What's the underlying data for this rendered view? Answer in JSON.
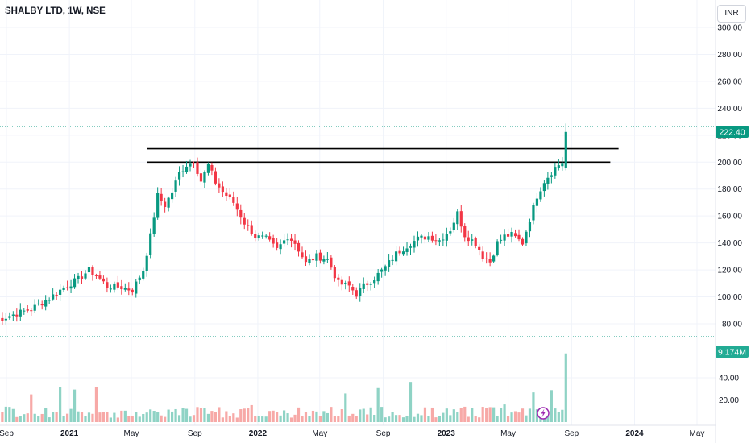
{
  "header": {
    "title": "SHALBY LTD, 1W, NSE",
    "currency": "INR"
  },
  "price_tag": "222.40",
  "volume_tag": "9.174M",
  "chart_data": {
    "type": "candlestick",
    "y_ticks": [
      "300.00",
      "280.00",
      "260.00",
      "240.00",
      "220.00",
      "200.00",
      "180.00",
      "160.00",
      "140.00",
      "120.00",
      "100.00",
      "80.00"
    ],
    "y_tick_values": [
      300,
      280,
      260,
      240,
      220,
      200,
      180,
      160,
      140,
      120,
      100,
      80
    ],
    "volume_ticks": [
      "40.00",
      "20.00"
    ],
    "volume_tick_values": [
      40,
      20
    ],
    "x_ticks": [
      "Sep",
      "2021",
      "May",
      "Sep",
      "2022",
      "May",
      "Sep",
      "2023",
      "May",
      "Sep",
      "2024",
      "May"
    ],
    "x_tick_dates": [
      "2020-09-01",
      "2021-01-01",
      "2021-05-01",
      "2021-09-01",
      "2022-01-01",
      "2022-05-01",
      "2022-09-01",
      "2023-01-01",
      "2023-05-01",
      "2023-09-01",
      "2024-01-01",
      "2024-05-01"
    ],
    "last_price": 222.4,
    "last_volume_m": 9.174,
    "resistance_lines": [
      {
        "price": 210,
        "from": "2021-06-01",
        "to": "2023-12-01"
      },
      {
        "price": 200,
        "from": "2021-06-01",
        "to": "2023-11-15"
      }
    ],
    "close_path": [
      [
        "2020-08-10",
        82
      ],
      [
        "2020-09-07",
        86
      ],
      [
        "2020-10-19",
        91
      ],
      [
        "2020-11-23",
        99
      ],
      [
        "2020-12-21",
        107
      ],
      [
        "2021-01-18",
        113
      ],
      [
        "2021-02-08",
        120
      ],
      [
        "2021-02-22",
        116
      ],
      [
        "2021-03-15",
        108
      ],
      [
        "2021-04-12",
        107
      ],
      [
        "2021-05-03",
        105
      ],
      [
        "2021-05-24",
        120
      ],
      [
        "2021-06-07",
        145
      ],
      [
        "2021-06-21",
        175
      ],
      [
        "2021-07-05",
        168
      ],
      [
        "2021-07-19",
        178
      ],
      [
        "2021-08-02",
        192
      ],
      [
        "2021-08-16",
        198
      ],
      [
        "2021-08-30",
        201
      ],
      [
        "2021-09-13",
        186
      ],
      [
        "2021-09-27",
        198
      ],
      [
        "2021-10-11",
        185
      ],
      [
        "2021-10-25",
        178
      ],
      [
        "2021-11-15",
        170
      ],
      [
        "2021-12-06",
        155
      ],
      [
        "2021-12-27",
        145
      ],
      [
        "2022-01-17",
        143
      ],
      [
        "2022-02-07",
        135
      ],
      [
        "2022-02-28",
        145
      ],
      [
        "2022-03-14",
        140
      ],
      [
        "2022-04-04",
        125
      ],
      [
        "2022-04-25",
        130
      ],
      [
        "2022-05-16",
        128
      ],
      [
        "2022-06-06",
        110
      ],
      [
        "2022-06-27",
        108
      ],
      [
        "2022-07-11",
        102
      ],
      [
        "2022-07-25",
        108
      ],
      [
        "2022-08-15",
        114
      ],
      [
        "2022-09-05",
        122
      ],
      [
        "2022-09-26",
        132
      ],
      [
        "2022-10-17",
        138
      ],
      [
        "2022-11-07",
        143
      ],
      [
        "2022-11-28",
        145
      ],
      [
        "2022-12-19",
        142
      ],
      [
        "2023-01-09",
        150
      ],
      [
        "2023-01-23",
        162
      ],
      [
        "2023-02-06",
        146
      ],
      [
        "2023-02-27",
        140
      ],
      [
        "2023-03-13",
        130
      ],
      [
        "2023-03-27",
        126
      ],
      [
        "2023-04-10",
        140
      ],
      [
        "2023-04-24",
        145
      ],
      [
        "2023-05-08",
        146
      ],
      [
        "2023-05-29",
        140
      ],
      [
        "2023-06-12",
        158
      ],
      [
        "2023-06-26",
        175
      ],
      [
        "2023-07-10",
        186
      ],
      [
        "2023-07-31",
        196
      ],
      [
        "2023-08-14",
        200
      ],
      [
        "2023-08-21",
        222.4
      ]
    ]
  }
}
